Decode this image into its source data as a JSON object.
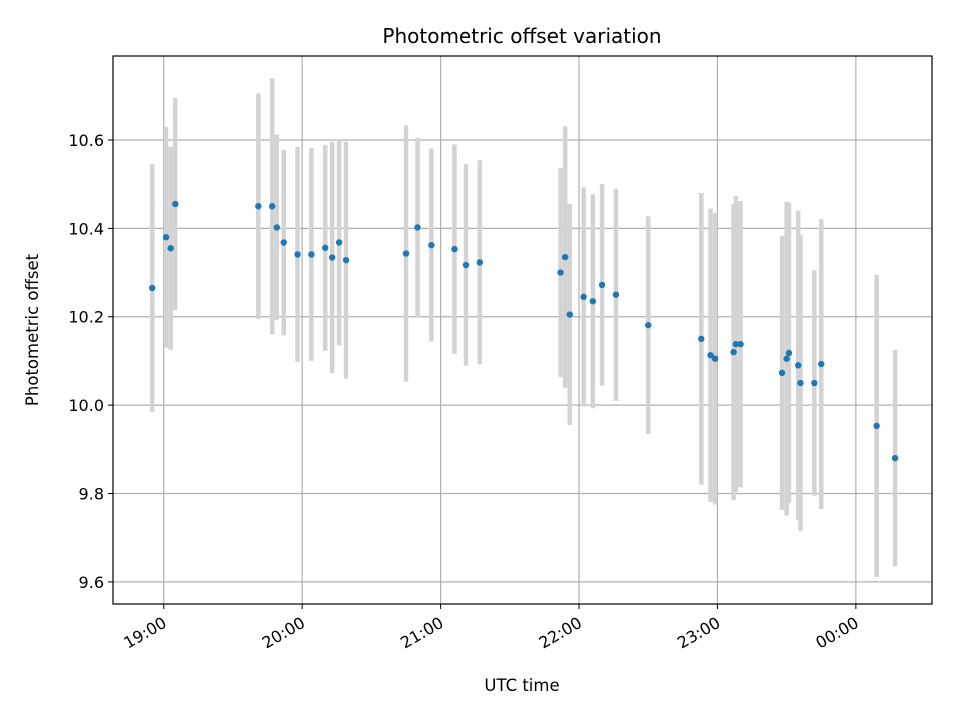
{
  "chart_data": {
    "type": "scatter",
    "title": "Photometric offset variation",
    "xlabel": "UTC time",
    "ylabel": "Photometric offset",
    "x_tick_labels": [
      "19:00",
      "20:00",
      "21:00",
      "22:00",
      "23:00",
      "00:00"
    ],
    "x_ticks": [
      "19:00",
      "20:00",
      "21:00",
      "22:00",
      "23:00",
      "00:00"
    ],
    "xlim": [
      "18:38",
      "00:33"
    ],
    "y_ticks": [
      9.6,
      9.8,
      10.0,
      10.2,
      10.4,
      10.6
    ],
    "y_tick_labels": [
      "9.6",
      "9.8",
      "10.0",
      "10.2",
      "10.4",
      "10.6"
    ],
    "ylim": [
      9.55,
      10.79
    ],
    "grid": true,
    "marker_color": "#1f77b4",
    "errorbar_color": "#d3d3d3",
    "points": [
      {
        "t": "18:55",
        "y": 10.265,
        "err": 0.28
      },
      {
        "t": "19:01",
        "y": 10.38,
        "err": 0.25
      },
      {
        "t": "19:03",
        "y": 10.355,
        "err": 0.23
      },
      {
        "t": "19:05",
        "y": 10.455,
        "err": 0.24
      },
      {
        "t": "19:41",
        "y": 10.45,
        "err": 0.255
      },
      {
        "t": "19:47",
        "y": 10.45,
        "err": 0.29
      },
      {
        "t": "19:49",
        "y": 10.402,
        "err": 0.21
      },
      {
        "t": "19:52",
        "y": 10.368,
        "err": 0.21
      },
      {
        "t": "19:58",
        "y": 10.341,
        "err": 0.243
      },
      {
        "t": "20:04",
        "y": 10.341,
        "err": 0.241
      },
      {
        "t": "20:10",
        "y": 10.356,
        "err": 0.233
      },
      {
        "t": "20:13",
        "y": 10.334,
        "err": 0.262
      },
      {
        "t": "20:16",
        "y": 10.368,
        "err": 0.233
      },
      {
        "t": "20:19",
        "y": 10.328,
        "err": 0.268
      },
      {
        "t": "20:45",
        "y": 10.343,
        "err": 0.29
      },
      {
        "t": "20:50",
        "y": 10.402,
        "err": 0.203
      },
      {
        "t": "20:56",
        "y": 10.362,
        "err": 0.218
      },
      {
        "t": "21:06",
        "y": 10.353,
        "err": 0.237
      },
      {
        "t": "21:11",
        "y": 10.317,
        "err": 0.228
      },
      {
        "t": "21:17",
        "y": 10.323,
        "err": 0.231
      },
      {
        "t": "21:52",
        "y": 10.3,
        "err": 0.237
      },
      {
        "t": "21:54",
        "y": 10.335,
        "err": 0.296
      },
      {
        "t": "21:56",
        "y": 10.205,
        "err": 0.25
      },
      {
        "t": "22:02",
        "y": 10.245,
        "err": 0.248
      },
      {
        "t": "22:06",
        "y": 10.235,
        "err": 0.242
      },
      {
        "t": "22:10",
        "y": 10.272,
        "err": 0.228
      },
      {
        "t": "22:16",
        "y": 10.25,
        "err": 0.24
      },
      {
        "t": "22:30",
        "y": 10.181,
        "err": 0.246
      },
      {
        "t": "22:53",
        "y": 10.15,
        "err": 0.33
      },
      {
        "t": "22:57",
        "y": 10.113,
        "err": 0.332
      },
      {
        "t": "22:59",
        "y": 10.105,
        "err": 0.33
      },
      {
        "t": "23:07",
        "y": 10.12,
        "err": 0.335
      },
      {
        "t": "23:08",
        "y": 10.138,
        "err": 0.335
      },
      {
        "t": "23:10",
        "y": 10.138,
        "err": 0.324
      },
      {
        "t": "23:28",
        "y": 10.073,
        "err": 0.31
      },
      {
        "t": "23:30",
        "y": 10.105,
        "err": 0.355
      },
      {
        "t": "23:31",
        "y": 10.118,
        "err": 0.34
      },
      {
        "t": "23:35",
        "y": 10.09,
        "err": 0.35
      },
      {
        "t": "23:36",
        "y": 10.05,
        "err": 0.335
      },
      {
        "t": "23:42",
        "y": 10.05,
        "err": 0.255
      },
      {
        "t": "23:45",
        "y": 10.093,
        "err": 0.328
      },
      {
        "t": "00:09",
        "y": 9.953,
        "err": 0.342
      },
      {
        "t": "00:17",
        "y": 9.88,
        "err": 0.245
      }
    ]
  }
}
